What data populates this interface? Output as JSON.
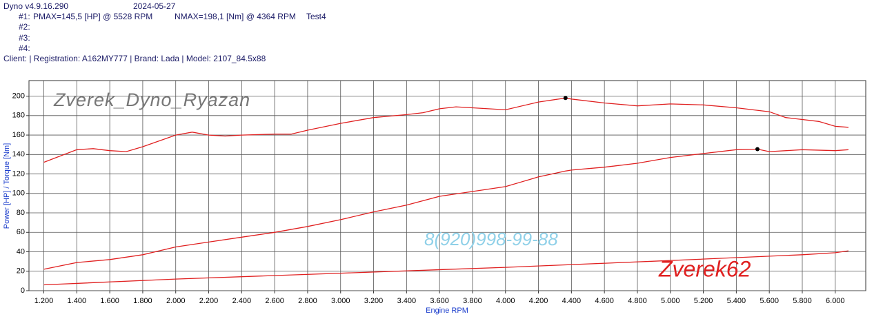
{
  "header": {
    "software": "Dyno v4.9.16.290",
    "date": "2024-05-27",
    "runs": [
      {
        "label": "#1:",
        "pmax": "PMAX=145,5 [HP] @ 5528 RPM",
        "nmax": "NMAX=198,1 [Nm] @ 4364 RPM",
        "test": "Test4"
      },
      {
        "label": "#2:"
      },
      {
        "label": "#3:"
      },
      {
        "label": "#4:"
      }
    ],
    "client": "Client:  | Registration: A162MY777 | Brand: Lada | Model: 2107_84.5x88"
  },
  "chart_data": {
    "type": "line",
    "x_label": "Engine RPM",
    "y_label": "Power [HP] / Torque [Nm]",
    "annotations": [
      "Zverek_Dyno_Ryazan",
      "8(920)998-99-88",
      "Zverek62"
    ],
    "xlim": [
      1110,
      6185
    ],
    "ylim": [
      0,
      216
    ],
    "xticks": [
      {
        "value": 1200,
        "label": "1.200"
      },
      {
        "value": 1400,
        "label": "1.400"
      },
      {
        "value": 1600,
        "label": "1.600"
      },
      {
        "value": 1800,
        "label": "1.800"
      },
      {
        "value": 2000,
        "label": "2.000"
      },
      {
        "value": 2200,
        "label": "2.200"
      },
      {
        "value": 2400,
        "label": "2.400"
      },
      {
        "value": 2600,
        "label": "2.600"
      },
      {
        "value": 2800,
        "label": "2.800"
      },
      {
        "value": 3000,
        "label": "3.000"
      },
      {
        "value": 3200,
        "label": "3.200"
      },
      {
        "value": 3400,
        "label": "3.400"
      },
      {
        "value": 3600,
        "label": "3.600"
      },
      {
        "value": 3800,
        "label": "3.800"
      },
      {
        "value": 4000,
        "label": "4.000"
      },
      {
        "value": 4200,
        "label": "4.200"
      },
      {
        "value": 4400,
        "label": "4.400"
      },
      {
        "value": 4600,
        "label": "4.600"
      },
      {
        "value": 4800,
        "label": "4.800"
      },
      {
        "value": 5000,
        "label": "5.000"
      },
      {
        "value": 5200,
        "label": "5.200"
      },
      {
        "value": 5400,
        "label": "5.400"
      },
      {
        "value": 5600,
        "label": "5.600"
      },
      {
        "value": 5800,
        "label": "5.800"
      },
      {
        "value": 6000,
        "label": "6.000"
      }
    ],
    "yticks": [
      0,
      20,
      40,
      60,
      80,
      100,
      120,
      140,
      160,
      180,
      200
    ],
    "grid": true,
    "series": [
      {
        "color": "#e02020",
        "x": [
          1200,
          1400,
          1500,
          1600,
          1700,
          1800,
          2000,
          2100,
          2200,
          2300,
          2400,
          2600,
          2700,
          2800,
          3000,
          3200,
          3400,
          3500,
          3600,
          3700,
          3800,
          4000,
          4200,
          4364,
          4400,
          4600,
          4800,
          5000,
          5200,
          5400,
          5600,
          5700,
          5800,
          5900,
          6000,
          6080
        ],
        "values": [
          132,
          145,
          146,
          144,
          143,
          148,
          160,
          163,
          160,
          159,
          160,
          161,
          161,
          165,
          172,
          178,
          181,
          183,
          187,
          189,
          188,
          186,
          194,
          198.1,
          197,
          193,
          190,
          192,
          191,
          188,
          184,
          178,
          176,
          174,
          169,
          168
        ]
      },
      {
        "color": "#e02020",
        "x": [
          1200,
          1400,
          1600,
          1800,
          2000,
          2200,
          2400,
          2600,
          2800,
          3000,
          3200,
          3400,
          3600,
          3800,
          4000,
          4200,
          4364,
          4400,
          4600,
          4800,
          5000,
          5200,
          5400,
          5528,
          5600,
          5800,
          6000,
          6080
        ],
        "values": [
          22,
          29,
          32,
          37,
          45,
          50,
          55,
          60,
          66,
          73,
          81,
          88,
          97,
          102,
          107,
          117,
          123,
          124,
          127,
          131,
          137,
          141,
          145,
          145.5,
          143,
          145,
          144,
          145
        ]
      },
      {
        "color": "#e02020",
        "x": [
          1200,
          2000,
          3000,
          4000,
          5000,
          5800,
          6000,
          6080
        ],
        "values": [
          6,
          12,
          18,
          24,
          31,
          37,
          39,
          41
        ]
      }
    ],
    "peaks": {
      "color": "#000000",
      "x": [
        4364,
        5528
      ],
      "values": [
        198.1,
        145.5
      ]
    }
  }
}
